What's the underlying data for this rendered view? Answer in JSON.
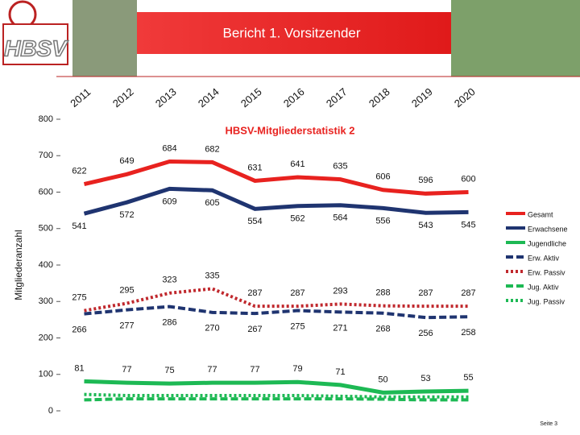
{
  "header": {
    "logo": "HBSV",
    "title": "Bericht 1. Vorsitzender"
  },
  "chart_data": {
    "type": "line",
    "title": "HBSV-Mitgliederstatistik 2",
    "y_label": "Mitgliederanzahl",
    "categories": [
      "2011",
      "2012",
      "2013",
      "2014",
      "2015",
      "2016",
      "2017",
      "2018",
      "2019",
      "2020"
    ],
    "ylim": [
      0,
      800
    ],
    "yticks": [
      0,
      100,
      200,
      300,
      400,
      500,
      600,
      700,
      800
    ],
    "grid": false,
    "legend": "right",
    "series": [
      {
        "name": "Gesamt",
        "color": "#e8221f",
        "style": "solid",
        "values": [
          622,
          649,
          684,
          682,
          631,
          641,
          635,
          606,
          596,
          600
        ]
      },
      {
        "name": "Erwachsene",
        "color": "#1f3470",
        "style": "solid",
        "values": [
          541,
          572,
          609,
          605,
          554,
          562,
          564,
          556,
          543,
          545
        ]
      },
      {
        "name": "Jugendliche",
        "color": "#1db954",
        "style": "solid",
        "values": [
          81,
          77,
          75,
          77,
          77,
          79,
          71,
          50,
          53,
          55
        ]
      },
      {
        "name": "Erw. Aktiv",
        "color": "#1f3470",
        "style": "dashed",
        "values": [
          266,
          277,
          286,
          270,
          267,
          275,
          271,
          268,
          256,
          258
        ]
      },
      {
        "name": "Erw. Passiv",
        "color": "#c0282d",
        "style": "dotted",
        "values": [
          275,
          295,
          323,
          335,
          287,
          287,
          293,
          288,
          287,
          287
        ]
      },
      {
        "name": "Jug. Aktiv",
        "color": "#1db954",
        "style": "dashed",
        "values": [
          30,
          33,
          33,
          33,
          33,
          33,
          33,
          32,
          30,
          30
        ]
      },
      {
        "name": "Jug. Passiv",
        "color": "#1db954",
        "style": "dotted",
        "values": [
          45,
          42,
          42,
          42,
          42,
          42,
          40,
          38,
          38,
          38
        ]
      }
    ]
  },
  "footer": {
    "page": "Seite 3"
  }
}
